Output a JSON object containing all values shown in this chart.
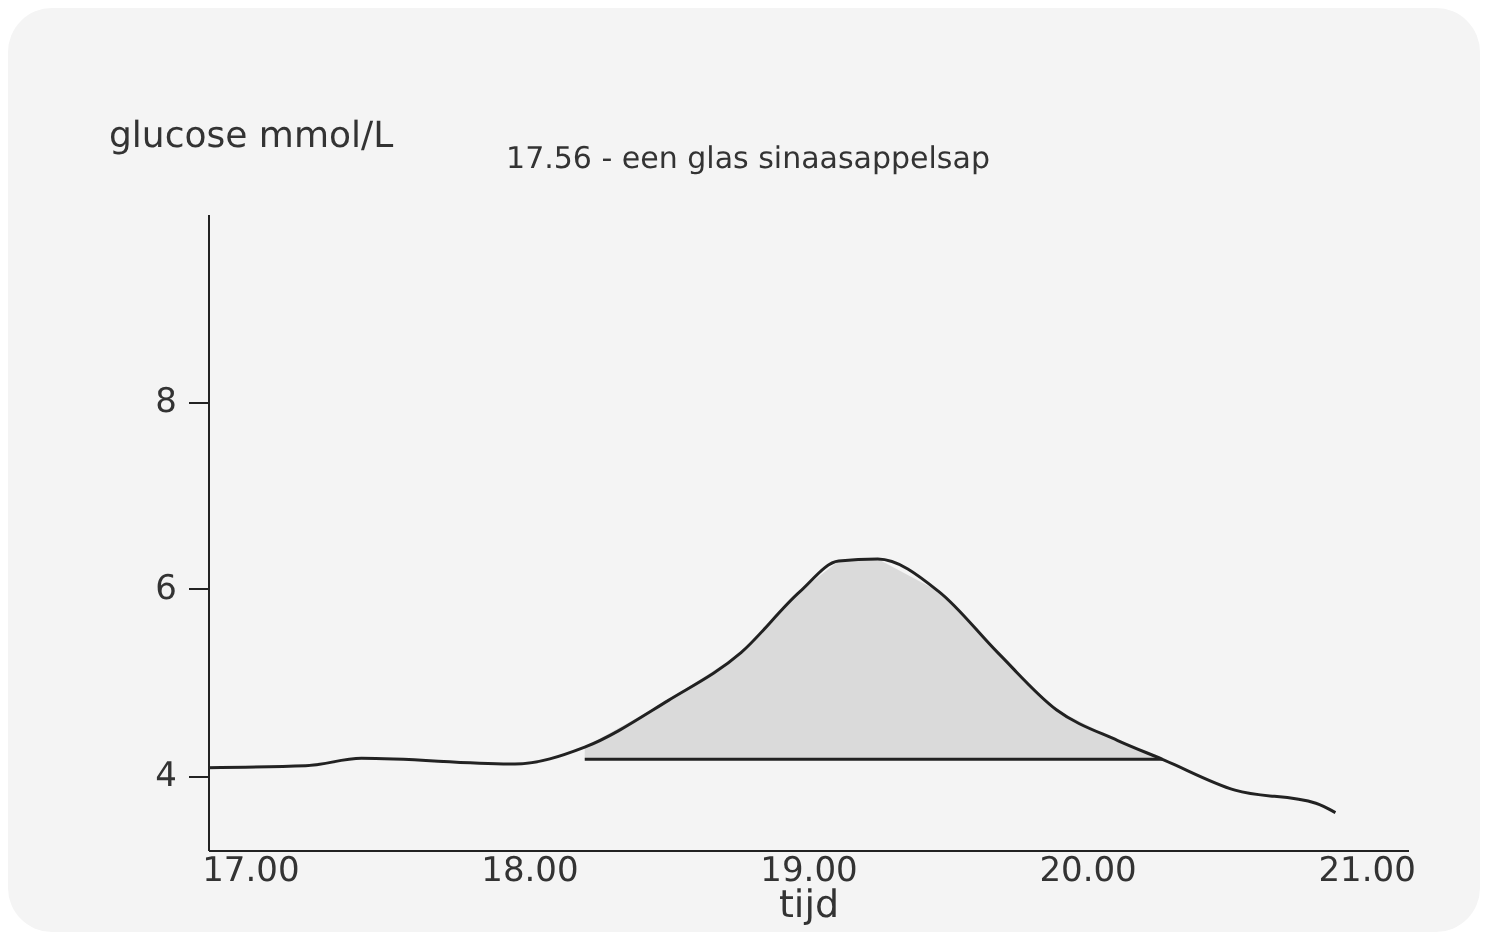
{
  "chart_data": {
    "type": "line",
    "ylabel": "glucose mmol/L",
    "xlabel": "tijd",
    "annotations": [
      "17.56 - een glas sinaasappelsap"
    ],
    "x": [
      16.85,
      17.2,
      17.4,
      17.95,
      18.2,
      18.5,
      18.76,
      18.97,
      19.11,
      19.25,
      19.47,
      19.68,
      19.89,
      20.11,
      20.27,
      20.53,
      20.82,
      20.89
    ],
    "series": [
      {
        "color": "#222222",
        "values": [
          4.08,
          4.1,
          4.18,
          4.12,
          4.3,
          4.8,
          5.31,
          5.96,
          6.29,
          6.31,
          5.96,
          5.31,
          4.7,
          4.37,
          4.17,
          3.84,
          3.7,
          3.6
        ],
        "lower": [
          null,
          null,
          null,
          null,
          4.17,
          4.17,
          4.17,
          4.17,
          4.17,
          4.17,
          4.17,
          4.17,
          4.17,
          4.17,
          4.17,
          null,
          null,
          null
        ],
        "upper": [
          null,
          null,
          null,
          null,
          4.3,
          4.8,
          5.31,
          5.96,
          6.29,
          6.31,
          5.96,
          5.31,
          4.7,
          4.37,
          4.17,
          null,
          null,
          null
        ]
      },
      {
        "type": "line",
        "color": "#222222",
        "x": [
          18.2,
          20.27
        ],
        "values": [
          4.17,
          4.17
        ]
      }
    ],
    "xlim": [
      16.85,
      21.15
    ],
    "xticks": [
      {
        "value": 17,
        "label": "17.00"
      },
      {
        "value": 18,
        "label": "18.00"
      },
      {
        "value": 19,
        "label": "19.00"
      },
      {
        "value": 20,
        "label": "20.00"
      },
      {
        "value": 21,
        "label": "21.00"
      }
    ],
    "ylim": [
      3.2,
      10
    ],
    "yticks": [
      4,
      6,
      8
    ],
    "grid": false,
    "marker": "none",
    "line_style": "solid"
  }
}
